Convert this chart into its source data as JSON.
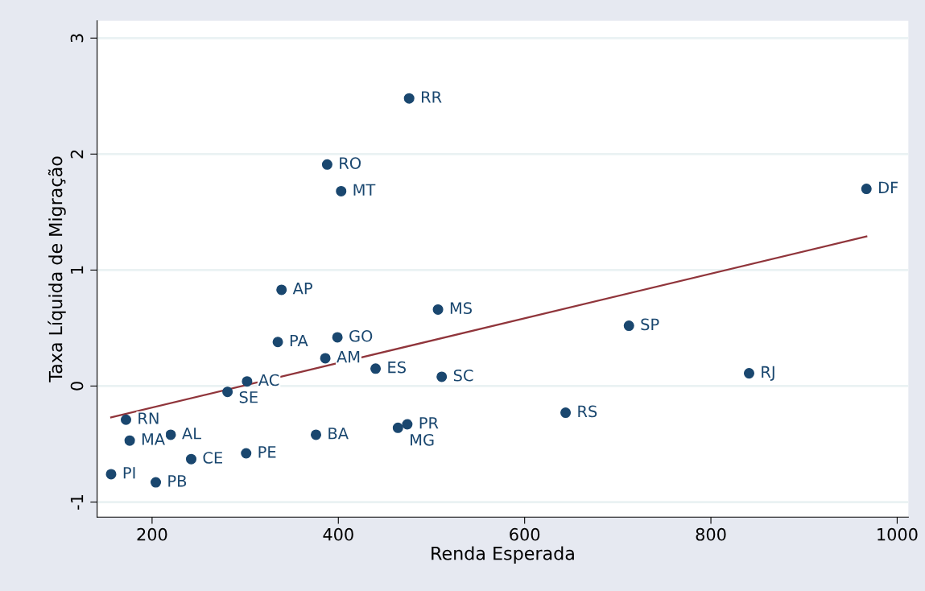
{
  "chart_data": {
    "type": "scatter",
    "xlabel": "Renda Esperada",
    "ylabel": "Taxa Líquida de Migração",
    "xlim": [
      141,
      1012
    ],
    "ylim": [
      -1.13,
      3.15
    ],
    "xticks": [
      200,
      400,
      600,
      800,
      1000
    ],
    "yticks": [
      -1,
      0,
      1,
      2,
      3
    ],
    "grid": "y",
    "series": [
      {
        "marker": "circle",
        "color": "#1a476f",
        "x": [
          476,
          388,
          403,
          967,
          339,
          507,
          712,
          335,
          399,
          386,
          440,
          511,
          841,
          302,
          281,
          172,
          644,
          474,
          464,
          220,
          376,
          176,
          301,
          242,
          156,
          204
        ],
        "values": [
          2.48,
          1.91,
          1.68,
          1.7,
          0.83,
          0.66,
          0.52,
          0.38,
          0.42,
          0.24,
          0.15,
          0.08,
          0.11,
          0.04,
          -0.05,
          -0.29,
          -0.23,
          -0.33,
          -0.36,
          -0.42,
          -0.42,
          -0.47,
          -0.58,
          -0.63,
          -0.76,
          -0.83
        ]
      },
      {
        "type": "line",
        "color": "#90353b",
        "x": [
          156,
          967
        ],
        "values": [
          -0.27,
          1.29
        ]
      }
    ],
    "annotations": [
      {
        "text": "RR",
        "x": 476,
        "y": 2.48
      },
      {
        "text": "RO",
        "x": 388,
        "y": 1.91
      },
      {
        "text": "MT",
        "x": 403,
        "y": 1.68
      },
      {
        "text": "DF",
        "x": 967,
        "y": 1.7
      },
      {
        "text": "AP",
        "x": 339,
        "y": 0.83
      },
      {
        "text": "MS",
        "x": 507,
        "y": 0.66
      },
      {
        "text": "SP",
        "x": 712,
        "y": 0.52
      },
      {
        "text": "PA",
        "x": 335,
        "y": 0.38
      },
      {
        "text": "GO",
        "x": 399,
        "y": 0.42
      },
      {
        "text": "AM",
        "x": 386,
        "y": 0.24
      },
      {
        "text": "ES",
        "x": 440,
        "y": 0.15
      },
      {
        "text": "SC",
        "x": 511,
        "y": 0.08
      },
      {
        "text": "RJ",
        "x": 841,
        "y": 0.11
      },
      {
        "text": "AC",
        "x": 302,
        "y": 0.04
      },
      {
        "text": "SE",
        "x": 281,
        "y": -0.05
      },
      {
        "text": "RN",
        "x": 172,
        "y": -0.29
      },
      {
        "text": "RS",
        "x": 644,
        "y": -0.23
      },
      {
        "text": "PR",
        "x": 474,
        "y": -0.33
      },
      {
        "text": "MG",
        "x": 464,
        "y": -0.36
      },
      {
        "text": "AL",
        "x": 220,
        "y": -0.42
      },
      {
        "text": "BA",
        "x": 376,
        "y": -0.42
      },
      {
        "text": "MA",
        "x": 176,
        "y": -0.47
      },
      {
        "text": "PE",
        "x": 301,
        "y": -0.58
      },
      {
        "text": "CE",
        "x": 242,
        "y": -0.63
      },
      {
        "text": "PI",
        "x": 156,
        "y": -0.76
      },
      {
        "text": "PB",
        "x": 204,
        "y": -0.83
      }
    ]
  }
}
